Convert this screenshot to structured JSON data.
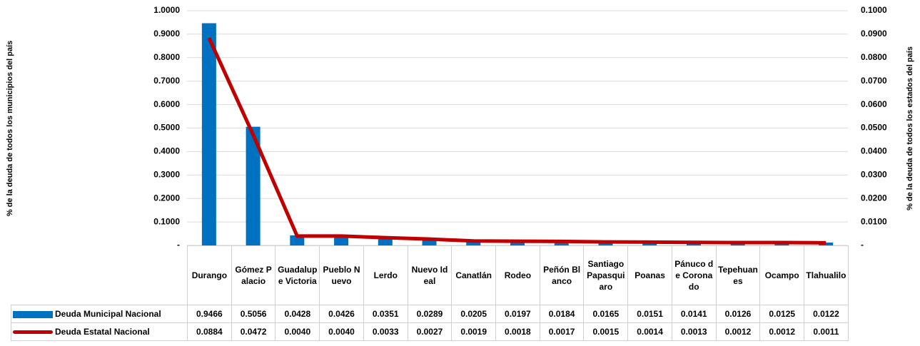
{
  "chart_data": {
    "type": "bar-line",
    "y_label": "% de la deuda  de todos los municipios del país",
    "y2_label": "% de la deuda de todos los estados del país",
    "categories": [
      "Durango",
      "Gómez Palacio",
      "Guadalupe Victoria",
      "Pueblo Nuevo",
      "Lerdo",
      "Nuevo Ideal",
      "Canatlán",
      "Rodeo",
      "Peñón Blanco",
      "Santiago Papasquiaro",
      "Poanas",
      "Pánuco de Coronado",
      "Tepehuanes",
      "Ocampo",
      "Tlahualilo"
    ],
    "series": [
      {
        "name": "Deuda Municipal Nacional",
        "type": "bar",
        "color": "#0070c0",
        "values": [
          0.9466,
          0.5056,
          0.0428,
          0.0426,
          0.0351,
          0.0289,
          0.0205,
          0.0197,
          0.0184,
          0.0165,
          0.0151,
          0.0141,
          0.0126,
          0.0125,
          0.0122
        ],
        "value_labels": [
          "0.9466",
          "0.5056",
          "0.0428",
          "0.0426",
          "0.0351",
          "0.0289",
          "0.0205",
          "0.0197",
          "0.0184",
          "0.0165",
          "0.0151",
          "0.0141",
          "0.0126",
          "0.0125",
          "0.0122"
        ]
      },
      {
        "name": "Deuda Estatal Nacional",
        "type": "line",
        "axis": "y2",
        "color": "#c00000",
        "values": [
          0.0884,
          0.0472,
          0.004,
          0.004,
          0.0033,
          0.0027,
          0.0019,
          0.0018,
          0.0017,
          0.0015,
          0.0014,
          0.0013,
          0.0012,
          0.0012,
          0.0011
        ],
        "value_labels": [
          "0.0884",
          "0.0472",
          "0.0040",
          "0.0040",
          "0.0033",
          "0.0027",
          "0.0019",
          "0.0018",
          "0.0017",
          "0.0015",
          "0.0014",
          "0.0013",
          "0.0012",
          "0.0012",
          "0.0011"
        ]
      }
    ],
    "ylim": [
      0,
      1
    ],
    "yticks": [
      {
        "value": 0,
        "label": "-"
      },
      {
        "value": 0.1,
        "label": "0.1000"
      },
      {
        "value": 0.2,
        "label": "0.2000"
      },
      {
        "value": 0.3,
        "label": "0.3000"
      },
      {
        "value": 0.4,
        "label": "0.4000"
      },
      {
        "value": 0.5,
        "label": "0.5000"
      },
      {
        "value": 0.6,
        "label": "0.6000"
      },
      {
        "value": 0.7,
        "label": "0.7000"
      },
      {
        "value": 0.8,
        "label": "0.8000"
      },
      {
        "value": 0.9,
        "label": "0.9000"
      },
      {
        "value": 1,
        "label": "1.0000"
      }
    ],
    "y2lim": [
      0,
      0.1
    ],
    "y2ticks": [
      {
        "value": 0,
        "label": "-"
      },
      {
        "value": 0.01,
        "label": "0.0100"
      },
      {
        "value": 0.02,
        "label": "0.0200"
      },
      {
        "value": 0.03,
        "label": "0.0300"
      },
      {
        "value": 0.04,
        "label": "0.0400"
      },
      {
        "value": 0.05,
        "label": "0.0500"
      },
      {
        "value": 0.06,
        "label": "0.0600"
      },
      {
        "value": 0.07,
        "label": "0.0700"
      },
      {
        "value": 0.08,
        "label": "0.0800"
      },
      {
        "value": 0.09,
        "label": "0.0900"
      },
      {
        "value": 0.1,
        "label": "0.1000"
      }
    ],
    "grid": true,
    "legend": "table"
  }
}
